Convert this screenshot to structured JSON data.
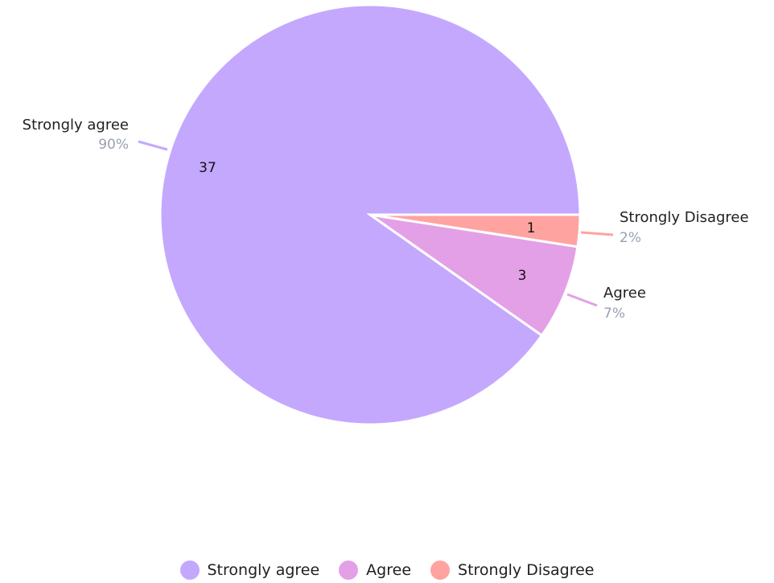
{
  "chart_data": {
    "type": "pie",
    "slices": [
      {
        "label": "Strongly agree",
        "value": 37,
        "percent": "90%",
        "color": "#c4a8fe"
      },
      {
        "label": "Agree",
        "value": 3,
        "percent": "7%",
        "color": "#e3a0e6"
      },
      {
        "label": "Strongly Disagree",
        "value": 1,
        "percent": "2%",
        "color": "#ffa3a0"
      }
    ],
    "start": "3 o'clock, clockwise (smallest slice first)",
    "legend_placement": "bottom-center"
  },
  "legend": {
    "items": [
      {
        "label": "Strongly agree",
        "color": "#c4a8fe"
      },
      {
        "label": "Agree",
        "color": "#e3a0e6"
      },
      {
        "label": "Strongly Disagree",
        "color": "#ffa3a0"
      }
    ]
  }
}
